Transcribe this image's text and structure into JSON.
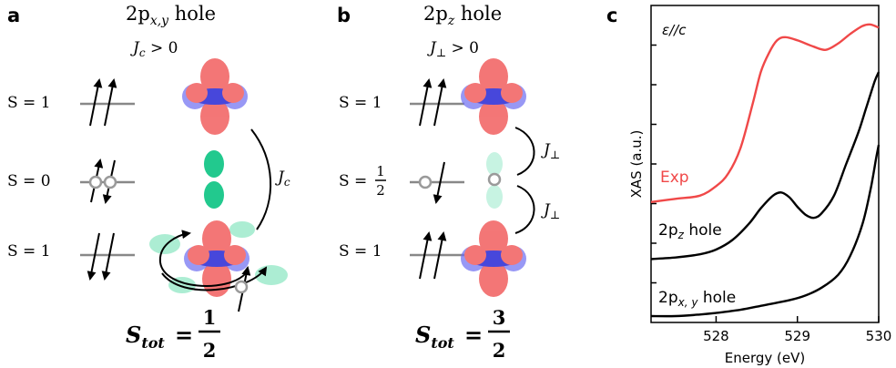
{
  "panel_a": {
    "letter": "a",
    "title_main": "2p",
    "title_sub": "x,y",
    "title_rest": " hole",
    "coupling_main": "J",
    "coupling_sub": "c",
    "coupling_rest": " > 0",
    "spin_levels": [
      "S = 1",
      "S = 0",
      "S = 1"
    ],
    "bond_main": "J",
    "bond_sub": "c",
    "total_main": "S",
    "total_sub": "tot",
    "total_eq": "=",
    "total_num": "1",
    "total_den": "2"
  },
  "panel_b": {
    "letter": "b",
    "title_main": "2p",
    "title_sub": "z",
    "title_rest": " hole",
    "coupling_main": "J",
    "coupling_sub": "⊥",
    "coupling_rest": " > 0",
    "spin_top": "S = 1",
    "spin_mid_prefix": "S =",
    "spin_mid_num": "1",
    "spin_mid_den": "2",
    "spin_bottom": "S = 1",
    "bond_main": "J",
    "bond_sub": "⊥",
    "total_main": "S",
    "total_sub": "tot",
    "total_eq": "=",
    "total_num": "3",
    "total_den": "2"
  },
  "panel_c": {
    "letter": "c",
    "polarization": "ε//c",
    "exp_label": "Exp",
    "pz_main": "2p",
    "pz_sub": "z",
    "pz_rest": " hole",
    "pxy_main": "2p",
    "pxy_sub": "x, y",
    "pxy_rest": " hole"
  },
  "colors": {
    "exp": "#f04848",
    "theory": "#000000",
    "orbital_red": "#f26b6b",
    "orbital_blue": "#5a5ae6",
    "orbital_green": "#22c98e",
    "orbital_mint": "#a6ecd0",
    "ring": "#9a9a9a"
  },
  "chart_data": {
    "type": "line",
    "xlabel": "Energy (eV)",
    "ylabel": "XAS (a.u.)",
    "xlim": [
      527.2,
      530.0
    ],
    "ylim": [
      0,
      1
    ],
    "xticks": [
      528,
      529,
      530
    ],
    "xtick_labels": [
      "528",
      "529",
      "530"
    ],
    "grid": false,
    "series": [
      {
        "name": "Exp",
        "color": "#f04848",
        "x": [
          527.2,
          527.5,
          527.8,
          528.0,
          528.15,
          528.3,
          528.45,
          528.55,
          528.65,
          528.75,
          528.85,
          529.0,
          529.2,
          529.35,
          529.5,
          529.65,
          529.8,
          529.9,
          530.0
        ],
        "y": [
          0.38,
          0.39,
          0.4,
          0.43,
          0.47,
          0.55,
          0.69,
          0.79,
          0.85,
          0.89,
          0.9,
          0.89,
          0.87,
          0.86,
          0.88,
          0.91,
          0.935,
          0.94,
          0.93
        ]
      },
      {
        "name": "2pz hole",
        "color": "#000000",
        "x": [
          527.2,
          527.5,
          527.8,
          528.0,
          528.2,
          528.4,
          528.55,
          528.7,
          528.8,
          528.9,
          529.0,
          529.1,
          529.2,
          529.3,
          529.45,
          529.6,
          529.75,
          529.85,
          529.95,
          530.0
        ],
        "y": [
          0.2,
          0.205,
          0.215,
          0.23,
          0.26,
          0.31,
          0.36,
          0.4,
          0.41,
          0.395,
          0.365,
          0.34,
          0.33,
          0.345,
          0.4,
          0.5,
          0.6,
          0.68,
          0.76,
          0.79
        ]
      },
      {
        "name": "2px,y hole",
        "color": "#000000",
        "x": [
          527.2,
          527.5,
          527.8,
          528.0,
          528.3,
          528.6,
          528.9,
          529.1,
          529.3,
          529.5,
          529.65,
          529.8,
          529.9,
          529.97,
          530.0
        ],
        "y": [
          0.02,
          0.02,
          0.025,
          0.03,
          0.04,
          0.055,
          0.07,
          0.085,
          0.11,
          0.15,
          0.21,
          0.31,
          0.42,
          0.52,
          0.56
        ]
      }
    ]
  }
}
